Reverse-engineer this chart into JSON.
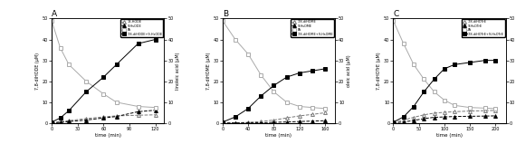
{
  "panels": [
    {
      "title": "A",
      "xlabel": "time (min)",
      "ylabel_left": "7,8-diHODE (µM)",
      "ylabel_right": "linoleic acid (µM)",
      "x": [
        0,
        10,
        20,
        40,
        60,
        75,
        100,
        120
      ],
      "series": [
        {
          "label": "13-HODE",
          "y": [
            0.3,
            0.7,
            1.2,
            2.2,
            3.0,
            3.5,
            3.8,
            4.0
          ],
          "marker": "^",
          "ls": "--",
          "filled": false,
          "color": "#777777"
        },
        {
          "label": "9-HsODE",
          "y": [
            0.1,
            0.4,
            0.8,
            1.5,
            2.5,
            3.2,
            5.5,
            6.2
          ],
          "marker": "^",
          "ls": "--",
          "filled": true,
          "color": "#000000"
        },
        {
          "label": "FA",
          "y": [
            49,
            36,
            28,
            20,
            14,
            10,
            8.0,
            7.5
          ],
          "marker": "s",
          "ls": "-",
          "filled": false,
          "color": "#aaaaaa"
        },
        {
          "label": "7,8-diHODE+9-HsODE",
          "y": [
            0.5,
            2.5,
            6.0,
            15,
            22,
            28,
            38,
            40
          ],
          "marker": "s",
          "ls": "-",
          "filled": true,
          "color": "#000000"
        }
      ],
      "ylim": [
        0,
        50
      ],
      "xlim": [
        0,
        130
      ],
      "xticks": [
        0,
        30,
        60,
        90,
        120
      ]
    },
    {
      "title": "B",
      "xlabel": "time (min)",
      "ylabel_left": "7,8-diHOME (µM)",
      "ylabel_right": "oleic acid (µM)",
      "x": [
        0,
        20,
        40,
        60,
        80,
        100,
        120,
        140,
        160
      ],
      "series": [
        {
          "label": "7,8-diHOME",
          "y": [
            0.1,
            0.2,
            0.4,
            0.8,
            1.5,
            2.5,
            3.5,
            4.2,
            5.0
          ],
          "marker": "^",
          "ls": "--",
          "filled": false,
          "color": "#777777"
        },
        {
          "label": "9-HsOME",
          "y": [
            0.05,
            0.1,
            0.15,
            0.2,
            0.4,
            0.6,
            0.8,
            1.0,
            1.2
          ],
          "marker": "^",
          "ls": "--",
          "filled": true,
          "color": "#000000"
        },
        {
          "label": "FA",
          "y": [
            49,
            40,
            33,
            23,
            15,
            10,
            8.0,
            7.5,
            7.0
          ],
          "marker": "s",
          "ls": "-",
          "filled": false,
          "color": "#aaaaaa"
        },
        {
          "label": "7,8-diHOME+9-HsOME",
          "y": [
            0.5,
            3.0,
            7.0,
            13,
            18,
            22,
            24,
            25,
            26
          ],
          "marker": "s",
          "ls": "-",
          "filled": true,
          "color": "#000000"
        }
      ],
      "ylim": [
        0,
        50
      ],
      "xlim": [
        0,
        175
      ],
      "xticks": [
        0,
        40,
        80,
        120,
        160
      ]
    },
    {
      "title": "C",
      "xlabel": "time (min)",
      "ylabel_left": "7,8-diHOTrE (µM)",
      "ylabel_right": "α-linolenic acid (µM)",
      "x": [
        0,
        20,
        40,
        60,
        80,
        100,
        120,
        150,
        180,
        200
      ],
      "series": [
        {
          "label": "7,8-diHOTrE",
          "y": [
            0.2,
            1.5,
            2.8,
            4.0,
            4.8,
            5.2,
            5.5,
            5.8,
            6.0,
            6.1
          ],
          "marker": "^",
          "ls": "--",
          "filled": false,
          "color": "#777777"
        },
        {
          "label": "9-HsOTrE",
          "y": [
            0.1,
            0.6,
            1.3,
            2.2,
            2.8,
            3.0,
            3.2,
            3.3,
            3.4,
            3.5
          ],
          "marker": "^",
          "ls": "--",
          "filled": true,
          "color": "#000000"
        },
        {
          "label": "FA",
          "y": [
            49,
            38,
            28,
            21,
            15,
            11,
            8.5,
            7.5,
            7.2,
            7.0
          ],
          "marker": "s",
          "ls": "-",
          "filled": false,
          "color": "#aaaaaa"
        },
        {
          "label": "7,8-diHOTrE+9-HsOTrE",
          "y": [
            0.5,
            3.0,
            8.0,
            15,
            21,
            26,
            28,
            29,
            30,
            30
          ],
          "marker": "s",
          "ls": "-",
          "filled": true,
          "color": "#000000"
        }
      ],
      "ylim": [
        0,
        50
      ],
      "xlim": [
        0,
        220
      ],
      "xticks": [
        0,
        50,
        100,
        150,
        200
      ]
    }
  ]
}
